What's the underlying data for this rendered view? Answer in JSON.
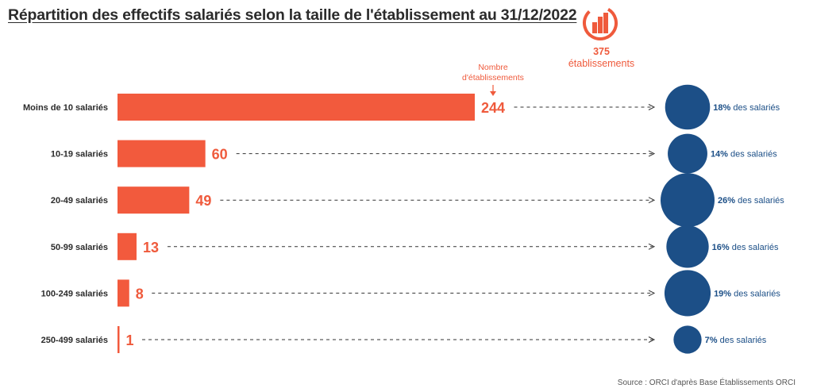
{
  "header": {
    "title": "Répartition des effectifs salariés selon la taille de l'établissement au 31/12/2022",
    "total_number": "375",
    "total_label": "établissements",
    "logo_icon": "bar-chart-circle-icon"
  },
  "colors": {
    "bar": "#f25a3d",
    "bubble": "#1c4f87",
    "accent_text": "#ef5a3c",
    "bubble_text": "#1c4f87"
  },
  "chart_data": {
    "type": "bar",
    "orientation": "horizontal",
    "annotation": "Nombre d'établissements",
    "annotation_lines": [
      "Nombre",
      "d'établissements"
    ],
    "categories": [
      "Moins de 10 salariés",
      "10-19 salariés",
      "20-49 salariés",
      "50-99 salariés",
      "100-249 salariés",
      "250-499 salariés"
    ],
    "values": [
      244,
      60,
      49,
      13,
      8,
      1
    ],
    "share_employees_pct": [
      18,
      14,
      26,
      16,
      19,
      7
    ],
    "share_suffix": "des salariés"
  },
  "source": "Source : ORCI d'après Base Établissements ORCI"
}
